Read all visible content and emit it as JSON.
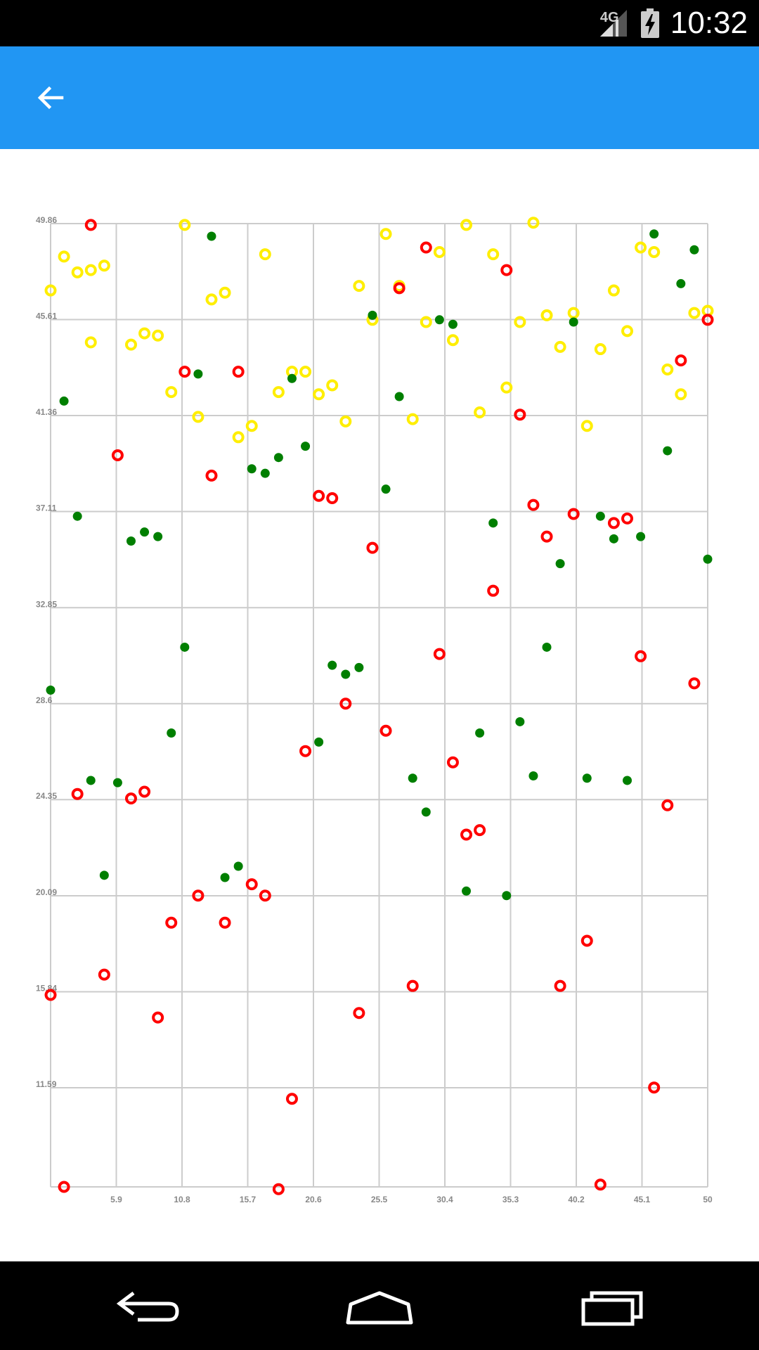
{
  "status_bar": {
    "network": "4G",
    "time": "10:32",
    "icons": [
      "signal-icon",
      "battery-charging-icon"
    ]
  },
  "app_bar": {
    "back_icon": "arrow-left-icon",
    "color": "#2196F3"
  },
  "nav_bar": {
    "icons": [
      "back-icon",
      "home-icon",
      "recents-icon"
    ]
  },
  "chart_data": {
    "type": "scatter",
    "title": "",
    "xlabel": "",
    "ylabel": "",
    "xlim": [
      1,
      50
    ],
    "ylim": [
      7.2,
      49.86
    ],
    "x_ticks": [
      {
        "value": 5.9,
        "label": "5.9"
      },
      {
        "value": 10.8,
        "label": "10.8"
      },
      {
        "value": 15.7,
        "label": "15.7"
      },
      {
        "value": 20.6,
        "label": "20.6"
      },
      {
        "value": 25.5,
        "label": "25.5"
      },
      {
        "value": 30.4,
        "label": "30.4"
      },
      {
        "value": 35.3,
        "label": "35.3"
      },
      {
        "value": 40.2,
        "label": "40.2"
      },
      {
        "value": 45.1,
        "label": "45.1"
      },
      {
        "value": 50,
        "label": "50"
      }
    ],
    "y_ticks": [
      {
        "value": 11.59,
        "label": "11.59"
      },
      {
        "value": 15.84,
        "label": "15.84"
      },
      {
        "value": 20.09,
        "label": "20.09"
      },
      {
        "value": 24.35,
        "label": "24.35"
      },
      {
        "value": 28.6,
        "label": "28.6"
      },
      {
        "value": 32.85,
        "label": "32.85"
      },
      {
        "value": 37.11,
        "label": "37.11"
      },
      {
        "value": 41.36,
        "label": "41.36"
      },
      {
        "value": 45.61,
        "label": "45.61"
      },
      {
        "value": 49.86,
        "label": "49.86"
      }
    ],
    "grid": true,
    "legend": "none",
    "series": [
      {
        "style": "ring",
        "color": "#FFEE00",
        "points": [
          [
            1,
            46.9
          ],
          [
            2,
            48.4
          ],
          [
            3,
            47.7
          ],
          [
            4,
            47.8
          ],
          [
            5,
            48
          ],
          [
            4,
            44.6
          ],
          [
            7,
            44.5
          ],
          [
            8,
            45
          ],
          [
            9,
            44.9
          ],
          [
            10,
            42.4
          ],
          [
            11,
            49.8
          ],
          [
            12,
            41.3
          ],
          [
            13,
            46.5
          ],
          [
            14,
            46.8
          ],
          [
            15,
            40.4
          ],
          [
            16,
            40.9
          ],
          [
            17,
            48.5
          ],
          [
            18,
            42.4
          ],
          [
            19,
            43.3
          ],
          [
            20,
            43.3
          ],
          [
            21,
            42.3
          ],
          [
            22,
            42.7
          ],
          [
            23,
            41.1
          ],
          [
            24,
            47.1
          ],
          [
            25,
            45.6
          ],
          [
            26,
            49.4
          ],
          [
            27,
            47.1
          ],
          [
            28,
            41.2
          ],
          [
            29,
            45.5
          ],
          [
            30,
            48.6
          ],
          [
            31,
            44.7
          ],
          [
            32,
            49.8
          ],
          [
            33,
            41.5
          ],
          [
            34,
            48.5
          ],
          [
            35,
            42.6
          ],
          [
            36,
            45.5
          ],
          [
            37,
            49.9
          ],
          [
            38,
            45.8
          ],
          [
            39,
            44.4
          ],
          [
            40,
            45.9
          ],
          [
            41,
            40.9
          ],
          [
            42,
            44.3
          ],
          [
            43,
            46.9
          ],
          [
            44,
            45.1
          ],
          [
            45,
            48.8
          ],
          [
            46,
            48.6
          ],
          [
            47,
            43.4
          ],
          [
            48,
            42.3
          ],
          [
            49,
            45.9
          ],
          [
            50,
            46
          ]
        ]
      },
      {
        "style": "dot",
        "color": "#007F00",
        "points": [
          [
            1,
            29.2
          ],
          [
            2,
            42
          ],
          [
            3,
            36.9
          ],
          [
            4,
            25.2
          ],
          [
            5,
            21
          ],
          [
            6,
            25.1
          ],
          [
            7,
            35.8
          ],
          [
            8,
            36.2
          ],
          [
            9,
            36
          ],
          [
            10,
            27.3
          ],
          [
            11,
            31.1
          ],
          [
            12,
            43.2
          ],
          [
            13,
            49.3
          ],
          [
            14,
            20.9
          ],
          [
            15,
            21.4
          ],
          [
            16,
            39
          ],
          [
            17,
            38.8
          ],
          [
            18,
            39.5
          ],
          [
            19,
            43
          ],
          [
            20,
            40
          ],
          [
            21,
            26.9
          ],
          [
            22,
            30.3
          ],
          [
            23,
            29.9
          ],
          [
            24,
            30.2
          ],
          [
            25,
            45.8
          ],
          [
            26,
            38.1
          ],
          [
            27,
            42.2
          ],
          [
            28,
            25.3
          ],
          [
            29,
            23.8
          ],
          [
            30,
            45.6
          ],
          [
            31,
            45.4
          ],
          [
            32,
            20.3
          ],
          [
            33,
            27.3
          ],
          [
            34,
            36.6
          ],
          [
            35,
            20.1
          ],
          [
            36,
            27.8
          ],
          [
            37,
            25.4
          ],
          [
            38,
            31.1
          ],
          [
            39,
            34.8
          ],
          [
            40,
            45.5
          ],
          [
            41,
            25.3
          ],
          [
            42,
            36.9
          ],
          [
            43,
            35.9
          ],
          [
            44,
            25.2
          ],
          [
            45,
            36
          ],
          [
            46,
            49.4
          ],
          [
            47,
            39.8
          ],
          [
            48,
            47.2
          ],
          [
            49,
            48.7
          ],
          [
            50,
            35
          ]
        ]
      },
      {
        "style": "ring",
        "color": "#FF0000",
        "points": [
          [
            1,
            15.7
          ],
          [
            2,
            7.2
          ],
          [
            3,
            24.6
          ],
          [
            4,
            49.8
          ],
          [
            5,
            16.6
          ],
          [
            6,
            39.6
          ],
          [
            7,
            24.4
          ],
          [
            8,
            24.7
          ],
          [
            9,
            14.7
          ],
          [
            10,
            18.9
          ],
          [
            11,
            43.3
          ],
          [
            12,
            20.1
          ],
          [
            13,
            38.7
          ],
          [
            14,
            18.9
          ],
          [
            15,
            43.3
          ],
          [
            16,
            20.6
          ],
          [
            17,
            20.1
          ],
          [
            18,
            7.1
          ],
          [
            19,
            11.1
          ],
          [
            20,
            26.5
          ],
          [
            21,
            37.8
          ],
          [
            22,
            37.7
          ],
          [
            23,
            28.6
          ],
          [
            24,
            14.9
          ],
          [
            25,
            35.5
          ],
          [
            26,
            27.4
          ],
          [
            27,
            47
          ],
          [
            28,
            16.1
          ],
          [
            29,
            48.8
          ],
          [
            30,
            30.8
          ],
          [
            31,
            26
          ],
          [
            32,
            22.8
          ],
          [
            33,
            23
          ],
          [
            34,
            33.6
          ],
          [
            35,
            47.8
          ],
          [
            36,
            41.4
          ],
          [
            37,
            37.4
          ],
          [
            38,
            36
          ],
          [
            39,
            16.1
          ],
          [
            40,
            37
          ],
          [
            41,
            18.1
          ],
          [
            42,
            7.3
          ],
          [
            43,
            36.6
          ],
          [
            44,
            36.8
          ],
          [
            45,
            30.7
          ],
          [
            46,
            11.6
          ],
          [
            47,
            24.1
          ],
          [
            48,
            43.8
          ],
          [
            49,
            29.5
          ],
          [
            50,
            45.6
          ]
        ]
      }
    ]
  }
}
